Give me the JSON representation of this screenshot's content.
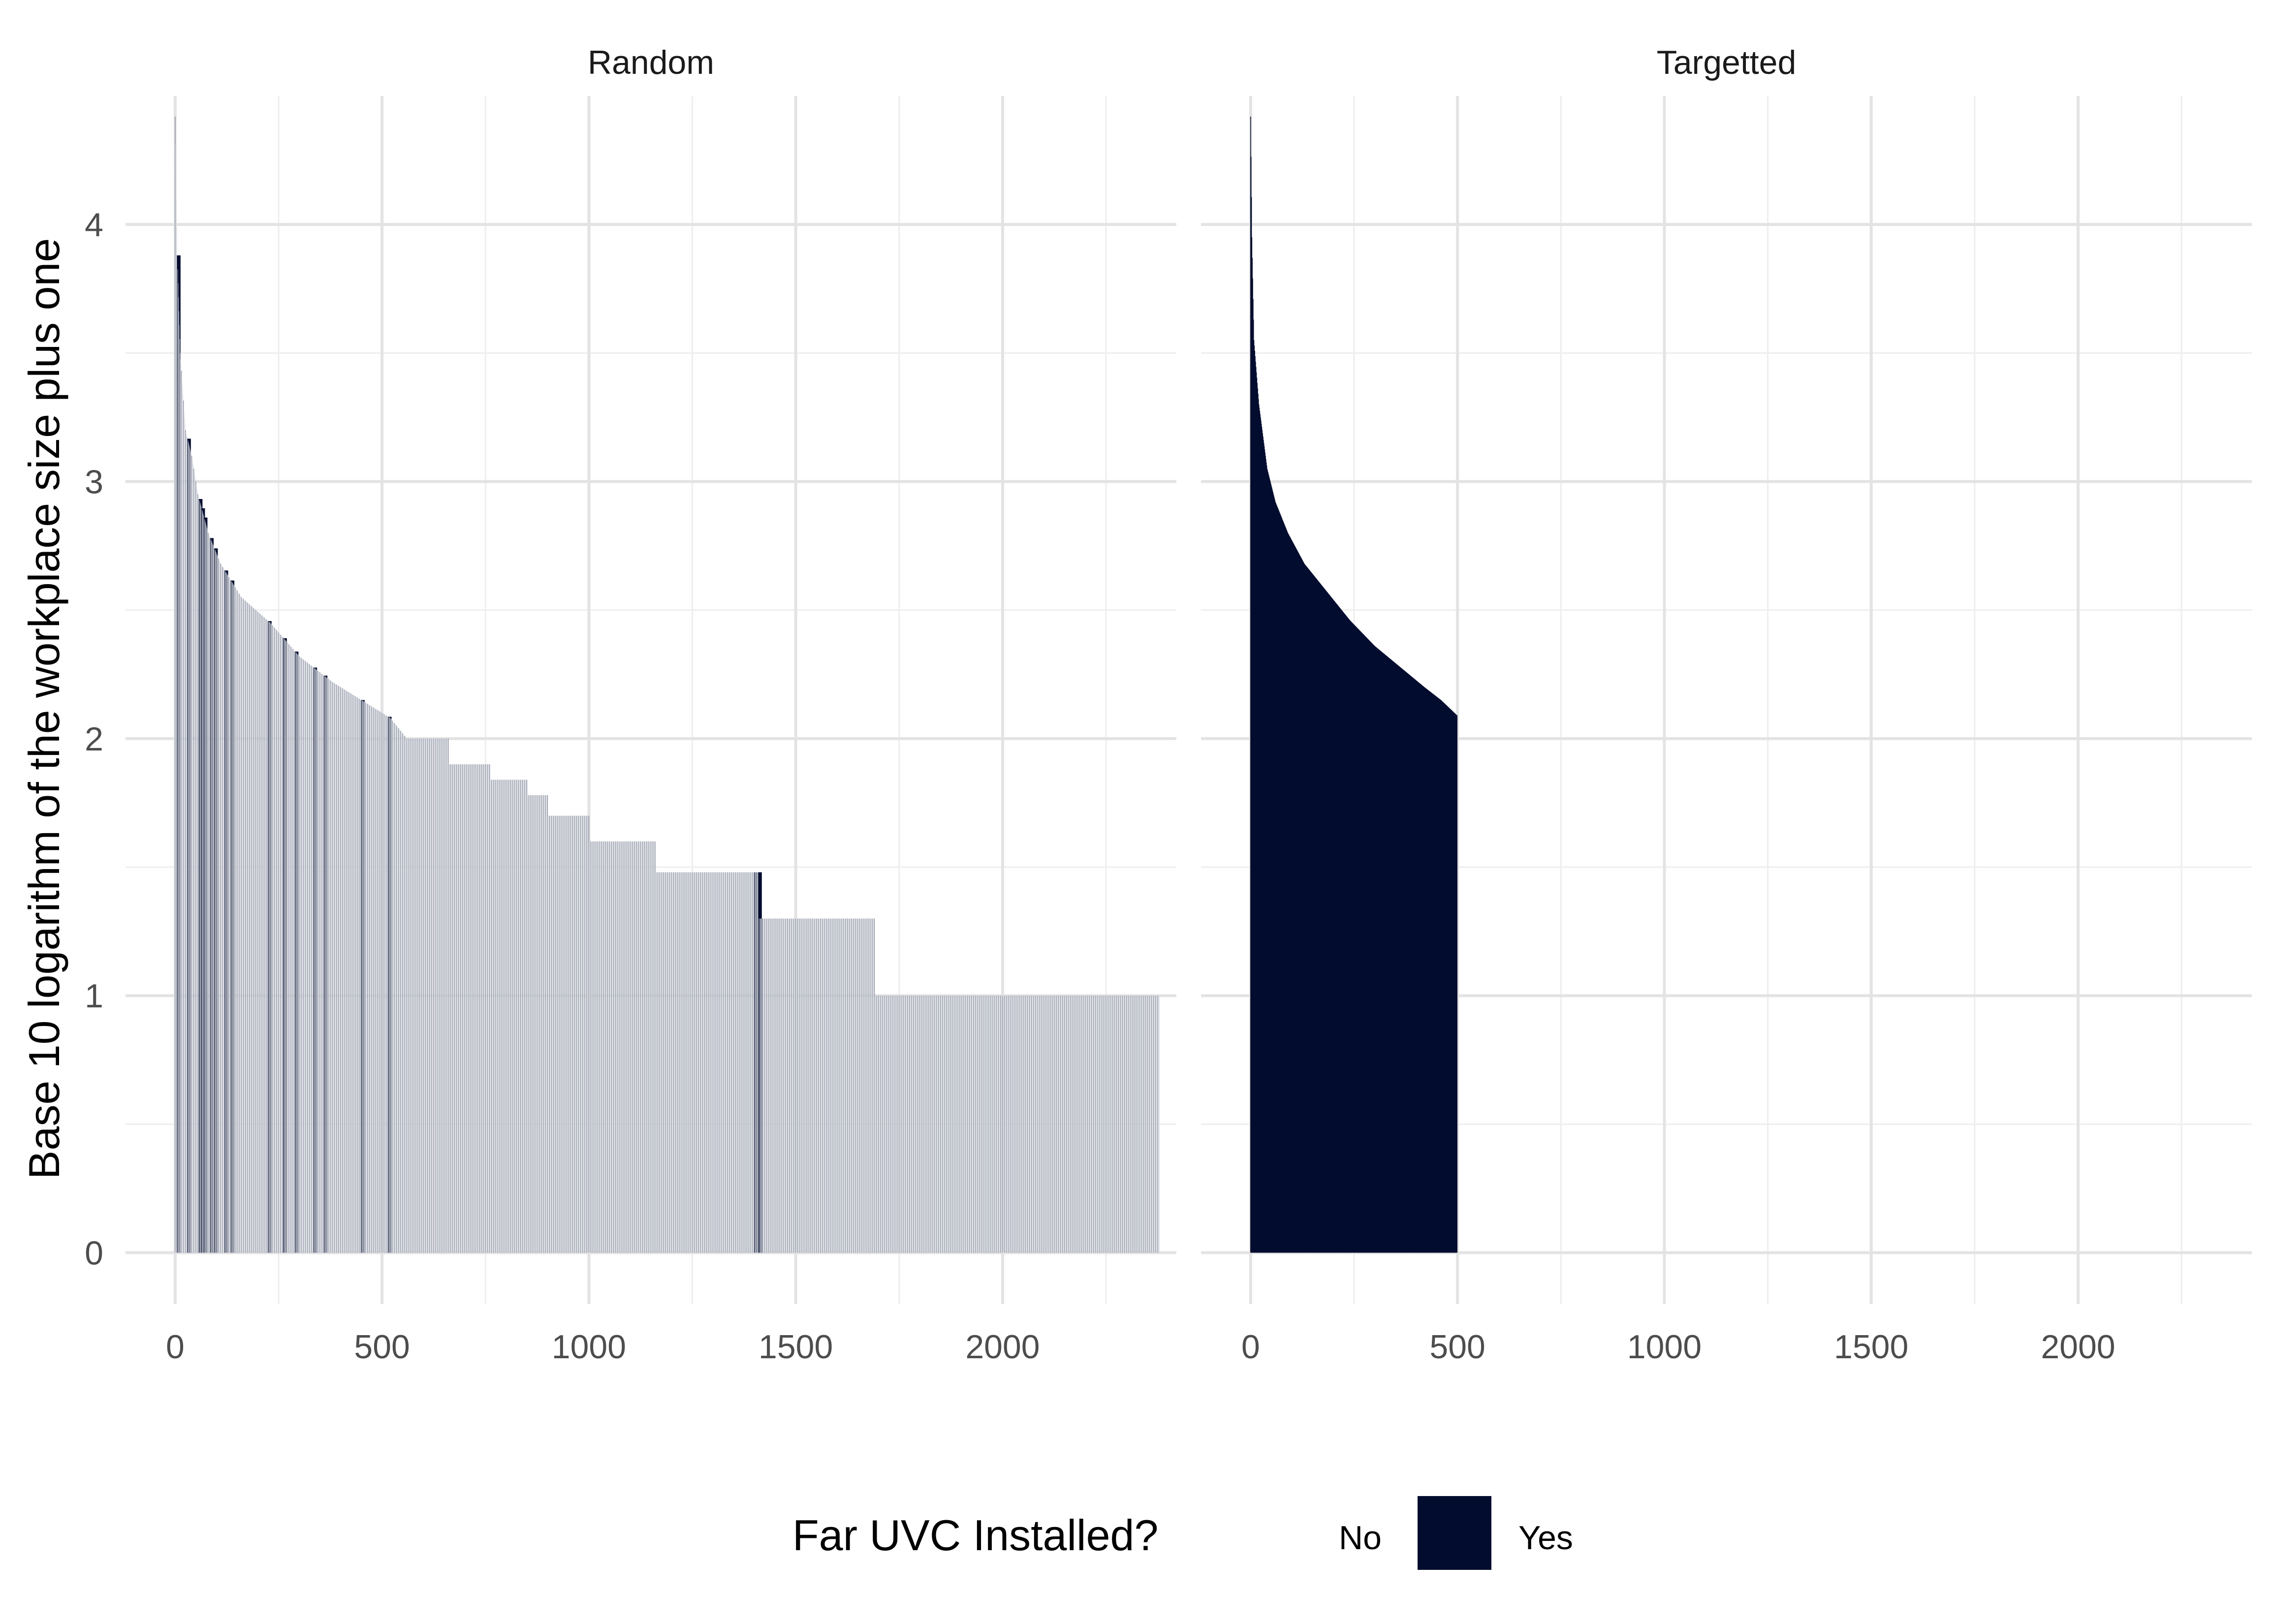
{
  "chart_data": {
    "type": "bar",
    "ylabel": "Base 10 logarithm of the workplace size plus one",
    "xlim": [
      -120,
      2420
    ],
    "ylim": [
      -0.2,
      4.5
    ],
    "x_ticks": [
      0,
      500,
      1000,
      1500,
      2000
    ],
    "y_ticks": [
      0,
      1,
      2,
      3,
      4
    ],
    "grid": true,
    "legend": {
      "title": "Far UVC Installed?",
      "position": "bottom",
      "entries": [
        {
          "label": "No",
          "color": "#ffffff"
        },
        {
          "label": "Yes",
          "color": "#020c2e"
        }
      ]
    },
    "panels": [
      {
        "title": "Random",
        "n_workplaces": 2380,
        "size_profile": [
          {
            "rank": 0,
            "value": 4.42
          },
          {
            "rank": 5,
            "value": 3.88
          },
          {
            "rank": 12,
            "value": 3.5
          },
          {
            "rank": 25,
            "value": 3.2
          },
          {
            "rank": 40,
            "value": 3.1
          },
          {
            "rank": 55,
            "value": 2.95
          },
          {
            "rank": 80,
            "value": 2.8
          },
          {
            "rank": 110,
            "value": 2.68
          },
          {
            "rank": 160,
            "value": 2.55
          },
          {
            "rank": 230,
            "value": 2.45
          },
          {
            "rank": 300,
            "value": 2.32
          },
          {
            "rank": 380,
            "value": 2.22
          },
          {
            "rank": 450,
            "value": 2.15
          },
          {
            "rank": 520,
            "value": 2.08
          },
          {
            "rank": 560,
            "value": 2.0
          },
          {
            "rank": 660,
            "value": 2.0
          },
          {
            "rank": 661,
            "value": 1.9
          },
          {
            "rank": 760,
            "value": 1.9
          },
          {
            "rank": 761,
            "value": 1.84
          },
          {
            "rank": 850,
            "value": 1.84
          },
          {
            "rank": 851,
            "value": 1.78
          },
          {
            "rank": 900,
            "value": 1.78
          },
          {
            "rank": 901,
            "value": 1.7
          },
          {
            "rank": 1000,
            "value": 1.7
          },
          {
            "rank": 1001,
            "value": 1.6
          },
          {
            "rank": 1160,
            "value": 1.6
          },
          {
            "rank": 1161,
            "value": 1.48
          },
          {
            "rank": 1410,
            "value": 1.48
          },
          {
            "rank": 1411,
            "value": 1.3
          },
          {
            "rank": 1690,
            "value": 1.3
          },
          {
            "rank": 1691,
            "value": 1.0
          },
          {
            "rank": 2370,
            "value": 1.0
          }
        ],
        "yes_ranks": [
          5,
          30,
          58,
          64,
          70,
          85,
          95,
          120,
          135,
          225,
          262,
          290,
          335,
          360,
          450,
          515,
          1400,
          1410,
          1412
        ]
      },
      {
        "title": "Targetted",
        "n_workplaces": 500,
        "size_profile": [
          {
            "rank": 0,
            "value": 4.42
          },
          {
            "rank": 3,
            "value": 3.95
          },
          {
            "rank": 8,
            "value": 3.55
          },
          {
            "rank": 20,
            "value": 3.3
          },
          {
            "rank": 40,
            "value": 3.05
          },
          {
            "rank": 60,
            "value": 2.92
          },
          {
            "rank": 90,
            "value": 2.8
          },
          {
            "rank": 130,
            "value": 2.68
          },
          {
            "rank": 180,
            "value": 2.58
          },
          {
            "rank": 240,
            "value": 2.46
          },
          {
            "rank": 300,
            "value": 2.36
          },
          {
            "rank": 360,
            "value": 2.28
          },
          {
            "rank": 420,
            "value": 2.2
          },
          {
            "rank": 460,
            "value": 2.15
          },
          {
            "rank": 499,
            "value": 2.09
          }
        ],
        "all_yes": true
      }
    ]
  }
}
